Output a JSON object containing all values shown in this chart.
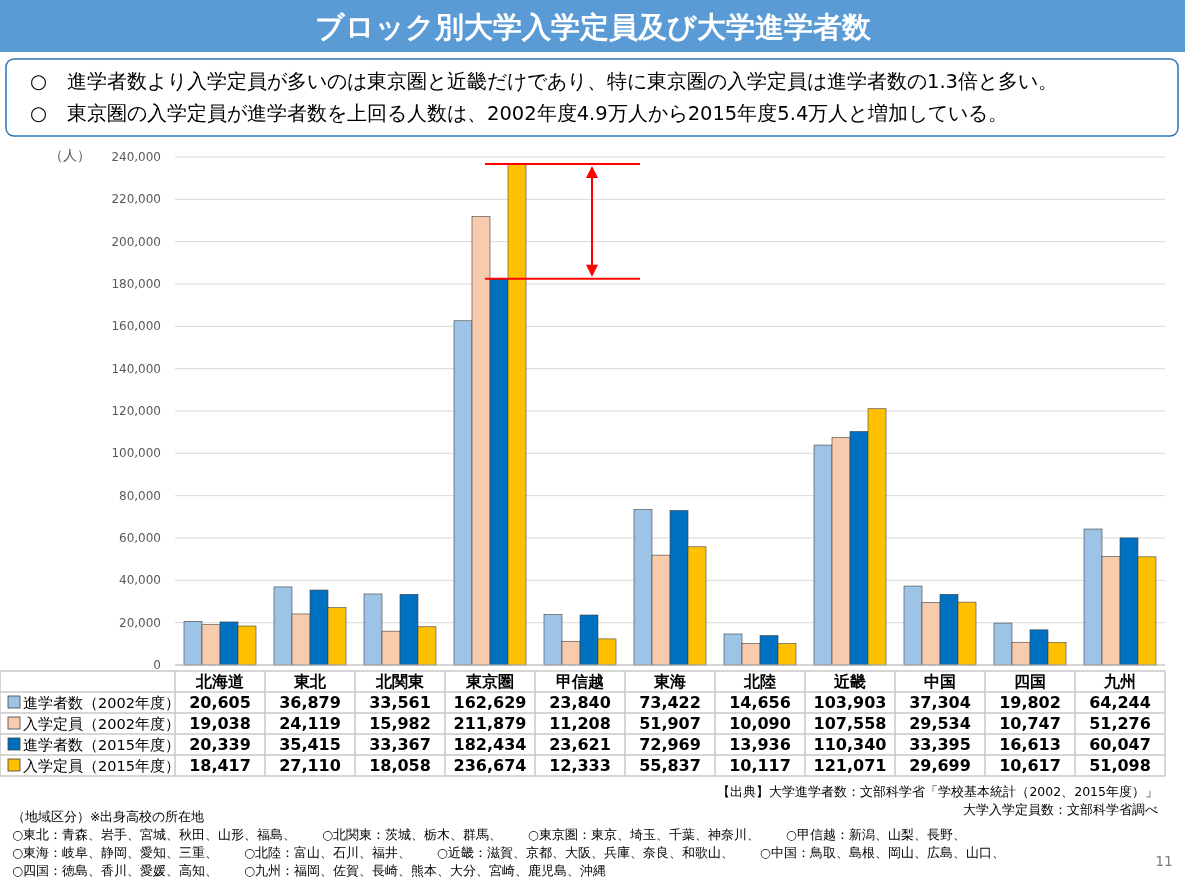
{
  "chart_data": {
    "type": "bar",
    "title": "ブロック別大学入学定員及び大学進学者数",
    "ylabel": "（人）",
    "categories": [
      "北海道",
      "東北",
      "北関東",
      "東京圏",
      "甲信越",
      "東海",
      "北陸",
      "近畿",
      "中国",
      "四国",
      "九州"
    ],
    "series": [
      {
        "name": "進学者数（2002年度）",
        "color": "#9dc3e6",
        "values": [
          20605,
          36879,
          33561,
          162629,
          23840,
          73422,
          14656,
          103903,
          37304,
          19802,
          64244
        ],
        "value_labels": [
          "20,605",
          "36,879",
          "33,561",
          "162,629",
          "23,840",
          "73,422",
          "14,656",
          "103,903",
          "37,304",
          "19,802",
          "64,244"
        ]
      },
      {
        "name": "入学定員（2002年度）",
        "color": "#f8cbad",
        "values": [
          19038,
          24119,
          15982,
          211879,
          11208,
          51907,
          10090,
          107558,
          29534,
          10747,
          51276
        ],
        "value_labels": [
          "19,038",
          "24,119",
          "15,982",
          "211,879",
          "11,208",
          "51,907",
          "10,090",
          "107,558",
          "29,534",
          "10,747",
          "51,276"
        ]
      },
      {
        "name": "進学者数（2015年度）",
        "color": "#0070c0",
        "values": [
          20339,
          35415,
          33367,
          182434,
          23621,
          72969,
          13936,
          110340,
          33395,
          16613,
          60047
        ],
        "value_labels": [
          "20,339",
          "35,415",
          "33,367",
          "182,434",
          "23,621",
          "72,969",
          "13,936",
          "110,340",
          "33,395",
          "16,613",
          "60,047"
        ]
      },
      {
        "name": "入学定員（2015年度）",
        "color": "#ffc000",
        "values": [
          18417,
          27110,
          18058,
          236674,
          12333,
          55837,
          10117,
          121071,
          29699,
          10617,
          51098
        ],
        "value_labels": [
          "18,417",
          "27,110",
          "18,058",
          "236,674",
          "12,333",
          "55,837",
          "10,117",
          "121,071",
          "29,699",
          "10,617",
          "51,098"
        ]
      }
    ],
    "ylim": [
      0,
      240000
    ],
    "yticks": [
      0,
      {
        "value": 20000,
        "label": "20,000"
      },
      {
        "value": 40000,
        "label": "40,000"
      },
      {
        "value": 60000,
        "label": "60,000"
      },
      {
        "value": 80000,
        "label": "80,000"
      },
      {
        "value": 100000,
        "label": "100,000"
      },
      {
        "value": 120000,
        "label": "120,000"
      },
      {
        "value": 140000,
        "label": "140,000"
      },
      {
        "value": 160000,
        "label": "160,000"
      },
      {
        "value": 180000,
        "label": "180,000"
      },
      {
        "value": 200000,
        "label": "200,000"
      },
      {
        "value": 220000,
        "label": "220,000"
      },
      {
        "value": 240000,
        "label": "240,000"
      }
    ],
    "grid": "y",
    "legend": "bottom",
    "ref_lines": [
      {
        "axis": "y",
        "value": 236674,
        "color": "#ff0000"
      },
      {
        "axis": "y",
        "value": 182434,
        "color": "#ff0000"
      }
    ],
    "annotations": [
      "○　進学者数より入学定員が多いのは東京圏と近畿だけであり、特に東京圏の入学定員は進学者数の1.3倍と多い。",
      "○　東京圏の入学定員が進学者数を上回る人数は、2002年度4.9万人から2015年度5.4万人と増加している。",
      "【出典】大学進学者数：文部科学省「学校基本統計（2002、2015年度）」",
      "大学入学定員数：文部科学省調べ",
      "（地域区分）※出身高校の所在地",
      "○東北：青森、岩手、宮城、秋田、山形、福島、　　○北関東：茨城、栃木、群馬、　　○東京圏：東京、埼玉、千葉、神奈川、　　○甲信越：新潟、山梨、長野、",
      "○東海：岐阜、静岡、愛知、三重、　　○北陸：富山、石川、福井、　　○近畿：滋賀、京都、大阪、兵庫、奈良、和歌山、　　○中国：鳥取、島根、岡山、広島、山口、",
      "○四国：徳島、香川、愛媛、高知、　　○九州：福岡、佐賀、長崎、熊本、大分、宮崎、鹿児島、沖縄",
      "11"
    ]
  }
}
